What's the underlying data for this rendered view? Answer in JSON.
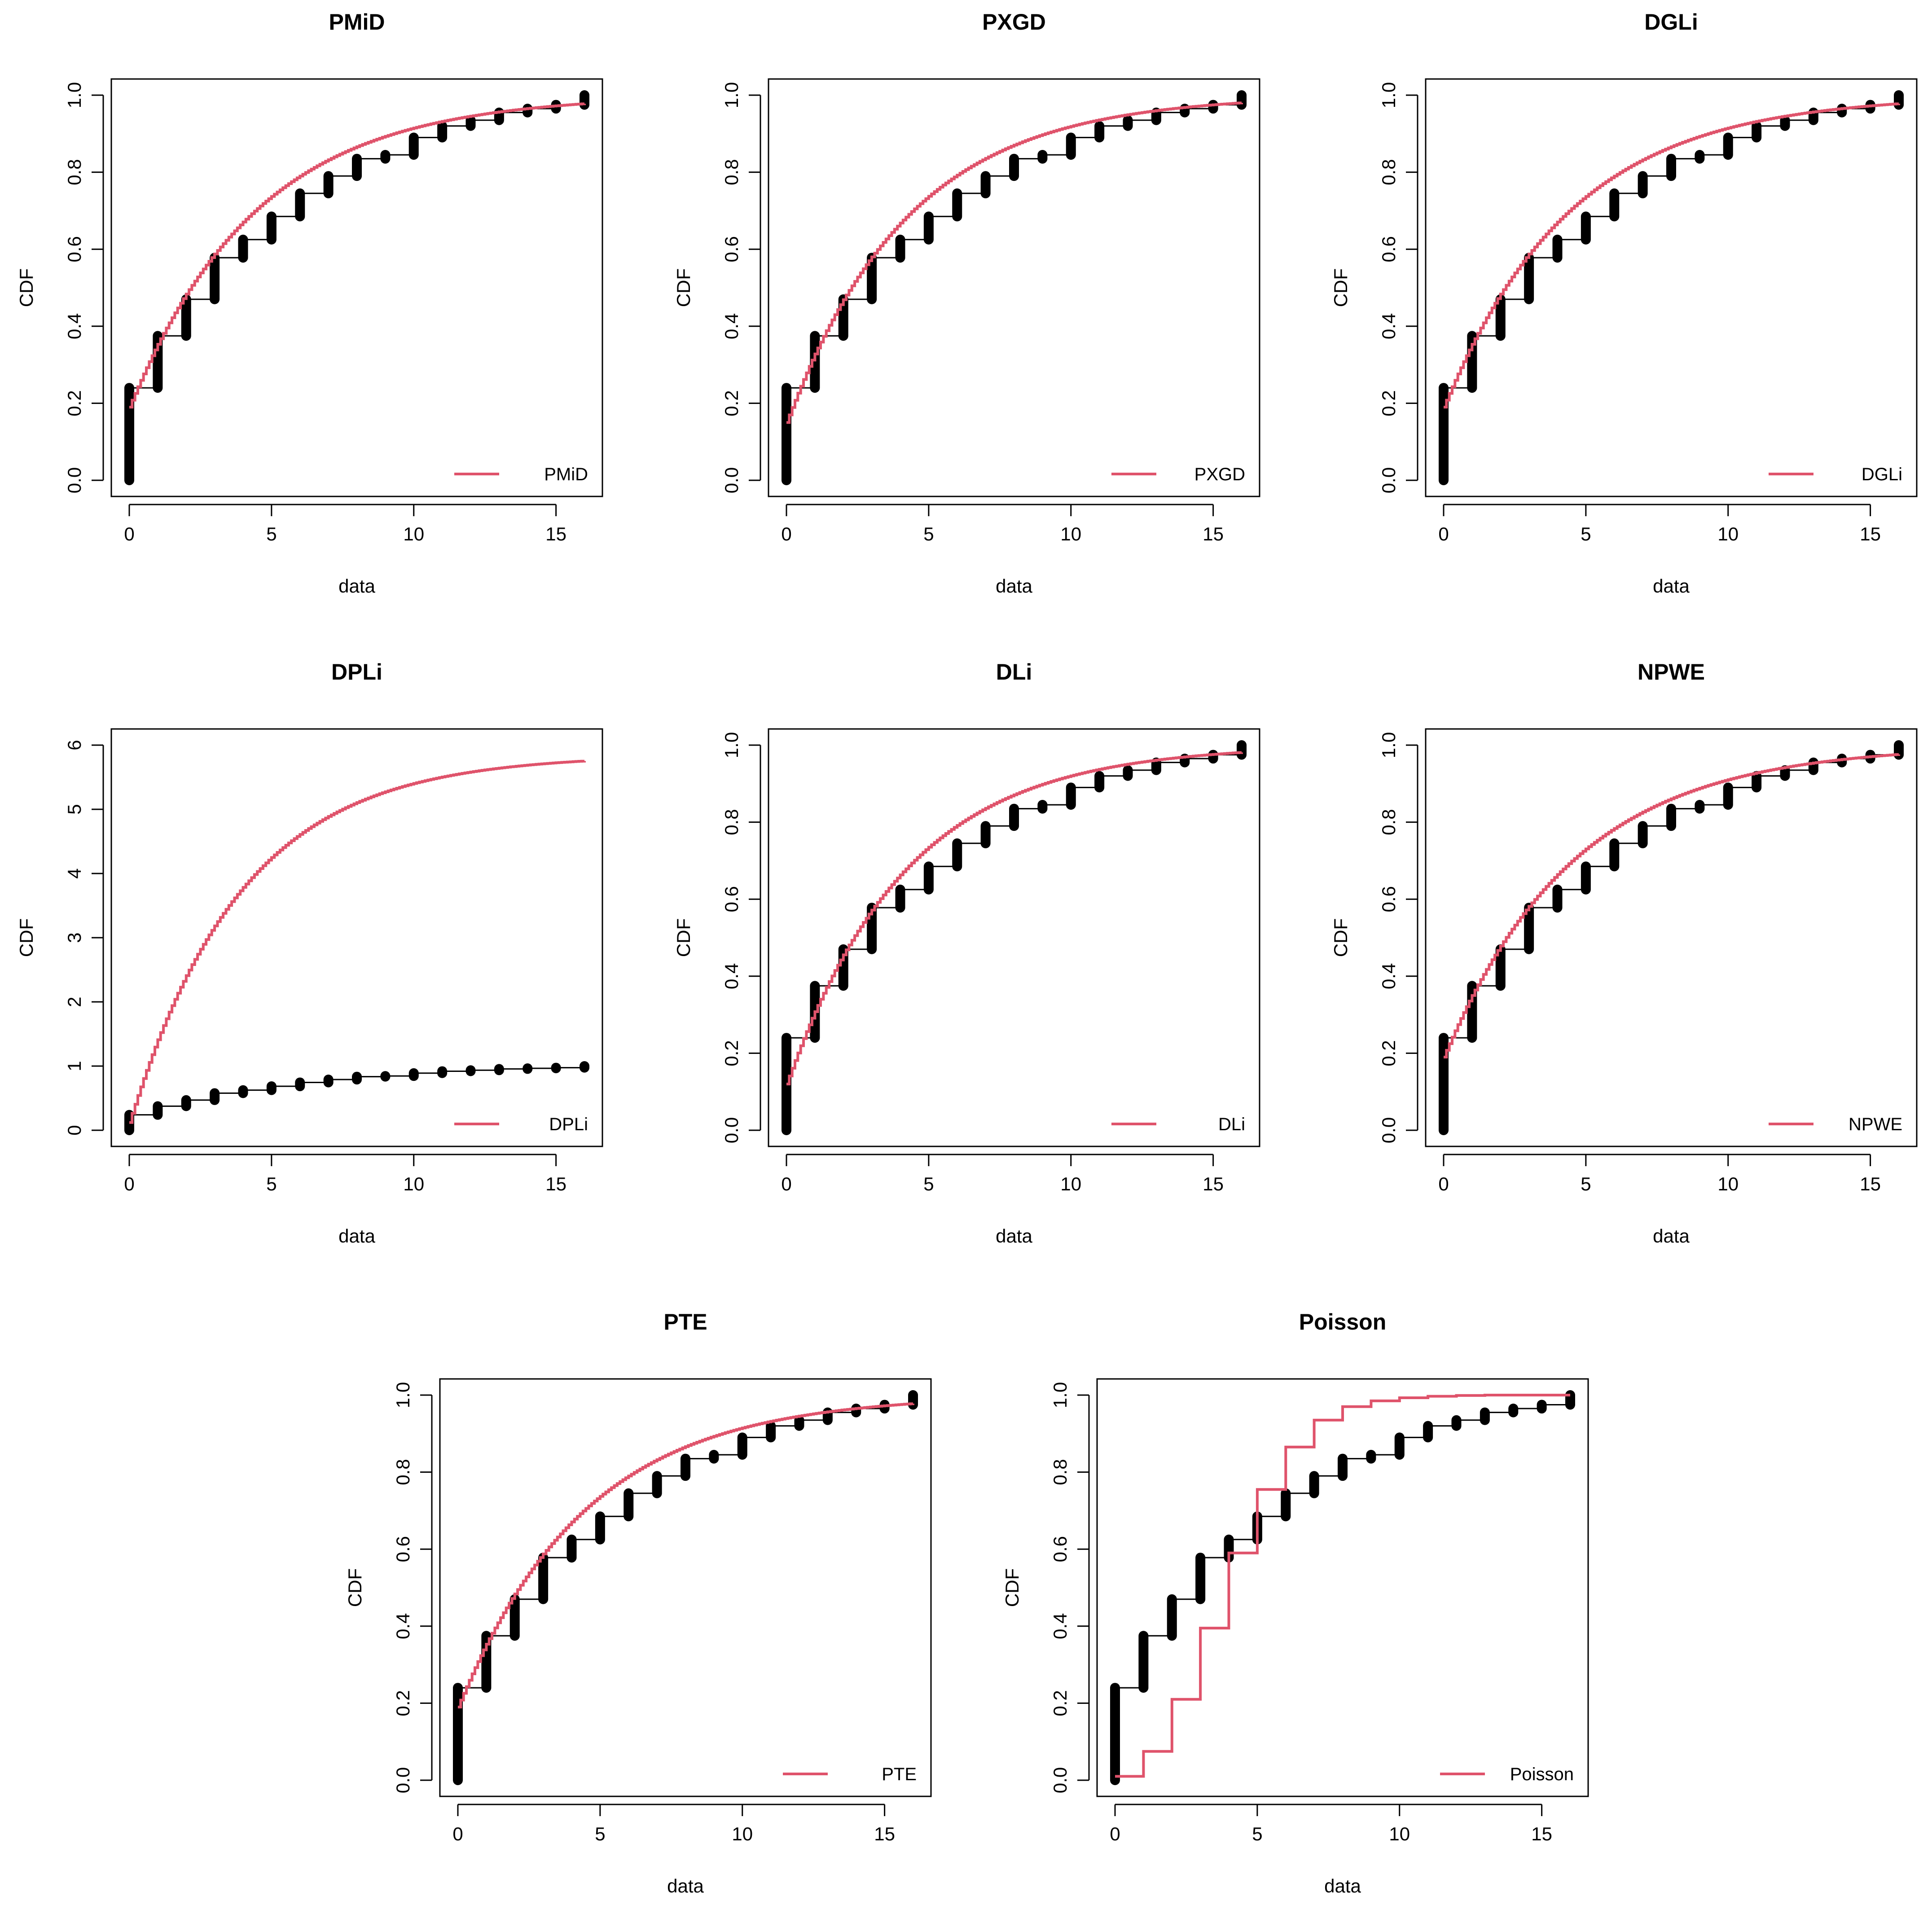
{
  "figure": {
    "background": "#ffffff"
  },
  "colors": {
    "ecdf": "#000000",
    "fitted": "#DF536B"
  },
  "shared": {
    "xlabel": "data",
    "ylabel": "CDF",
    "xticks": [
      0,
      5,
      10,
      15
    ],
    "xlim": [
      0,
      16
    ],
    "empirical_cdf": {
      "x": [
        0,
        1,
        2,
        3,
        4,
        5,
        6,
        7,
        8,
        9,
        10,
        11,
        12,
        13,
        14,
        15,
        16
      ],
      "y": [
        0.24,
        0.375,
        0.47,
        0.578,
        0.625,
        0.685,
        0.745,
        0.79,
        0.835,
        0.845,
        0.89,
        0.92,
        0.935,
        0.955,
        0.965,
        0.975,
        1.0
      ],
      "yprev": [
        0.0,
        0.24,
        0.375,
        0.47,
        0.578,
        0.625,
        0.685,
        0.745,
        0.79,
        0.835,
        0.845,
        0.89,
        0.92,
        0.935,
        0.955,
        0.965,
        0.975
      ]
    }
  },
  "chart_data": [
    {
      "type": "line",
      "title": "PMiD",
      "xlabel": "data",
      "ylabel": "CDF",
      "ylim": [
        0,
        1
      ],
      "yticks": [
        0.0,
        0.2,
        0.4,
        0.6,
        0.8,
        1.0
      ],
      "ytick_labels": [
        "0.0",
        "0.2",
        "0.4",
        "0.6",
        "0.8",
        "1.0"
      ],
      "legend": "PMiD",
      "legend_position": "bottom-right",
      "fitted": {
        "kind": "exp",
        "y0": 0.19,
        "rate": 0.225,
        "scale": 1.0
      }
    },
    {
      "type": "line",
      "title": "PXGD",
      "xlabel": "data",
      "ylabel": "CDF",
      "ylim": [
        0,
        1
      ],
      "yticks": [
        0.0,
        0.2,
        0.4,
        0.6,
        0.8,
        1.0
      ],
      "ytick_labels": [
        "0.0",
        "0.2",
        "0.4",
        "0.6",
        "0.8",
        "1.0"
      ],
      "legend": "PXGD",
      "legend_position": "bottom-right",
      "fitted": {
        "kind": "exp",
        "y0": 0.15,
        "rate": 0.235,
        "scale": 1.0
      }
    },
    {
      "type": "line",
      "title": "DGLi",
      "xlabel": "data",
      "ylabel": "CDF",
      "ylim": [
        0,
        1
      ],
      "yticks": [
        0.0,
        0.2,
        0.4,
        0.6,
        0.8,
        1.0
      ],
      "ytick_labels": [
        "0.0",
        "0.2",
        "0.4",
        "0.6",
        "0.8",
        "1.0"
      ],
      "legend": "DGLi",
      "legend_position": "bottom-right",
      "fitted": {
        "kind": "exp",
        "y0": 0.19,
        "rate": 0.225,
        "scale": 1.0
      }
    },
    {
      "type": "line",
      "title": "DPLi",
      "xlabel": "data",
      "ylabel": "CDF",
      "ylim": [
        0,
        6
      ],
      "yticks": [
        0,
        1,
        2,
        3,
        4,
        5,
        6
      ],
      "ytick_labels": [
        "0",
        "1",
        "2",
        "3",
        "4",
        "5",
        "6"
      ],
      "legend": "DPLi",
      "legend_position": "bottom-right",
      "fitted": {
        "kind": "exp",
        "y0": 0.12,
        "rate": 0.255,
        "scale": 5.85
      }
    },
    {
      "type": "line",
      "title": "DLi",
      "xlabel": "data",
      "ylabel": "CDF",
      "ylim": [
        0,
        1
      ],
      "yticks": [
        0.0,
        0.2,
        0.4,
        0.6,
        0.8,
        1.0
      ],
      "ytick_labels": [
        "0.0",
        "0.2",
        "0.4",
        "0.6",
        "0.8",
        "1.0"
      ],
      "legend": "DLi",
      "legend_position": "bottom-right",
      "fitted": {
        "kind": "exp",
        "y0": 0.12,
        "rate": 0.24,
        "scale": 1.0
      }
    },
    {
      "type": "line",
      "title": "NPWE",
      "xlabel": "data",
      "ylabel": "CDF",
      "ylim": [
        0,
        1
      ],
      "yticks": [
        0.0,
        0.2,
        0.4,
        0.6,
        0.8,
        1.0
      ],
      "ytick_labels": [
        "0.0",
        "0.2",
        "0.4",
        "0.6",
        "0.8",
        "1.0"
      ],
      "legend": "NPWE",
      "legend_position": "bottom-right",
      "fitted": {
        "kind": "exp",
        "y0": 0.19,
        "rate": 0.22,
        "scale": 1.0
      }
    },
    {
      "type": "line",
      "title": "PTE",
      "xlabel": "data",
      "ylabel": "CDF",
      "ylim": [
        0,
        1
      ],
      "yticks": [
        0.0,
        0.2,
        0.4,
        0.6,
        0.8,
        1.0
      ],
      "ytick_labels": [
        "0.0",
        "0.2",
        "0.4",
        "0.6",
        "0.8",
        "1.0"
      ],
      "legend": "PTE",
      "legend_position": "bottom-right",
      "fitted": {
        "kind": "exp",
        "y0": 0.19,
        "rate": 0.225,
        "scale": 1.0
      }
    },
    {
      "type": "line",
      "title": "Poisson",
      "xlabel": "data",
      "ylabel": "CDF",
      "ylim": [
        0,
        1
      ],
      "yticks": [
        0.0,
        0.2,
        0.4,
        0.6,
        0.8,
        1.0
      ],
      "ytick_labels": [
        "0.0",
        "0.2",
        "0.4",
        "0.6",
        "0.8",
        "1.0"
      ],
      "legend": "Poisson",
      "legend_position": "bottom-right",
      "fitted": {
        "kind": "step",
        "x": [
          0,
          1,
          2,
          3,
          4,
          5,
          6,
          7,
          8,
          9,
          10,
          11,
          12,
          13,
          14,
          15,
          16
        ],
        "y": [
          0.01,
          0.075,
          0.21,
          0.395,
          0.59,
          0.755,
          0.865,
          0.935,
          0.97,
          0.985,
          0.993,
          0.997,
          0.999,
          1.0,
          1.0,
          1.0,
          1.0
        ]
      }
    }
  ]
}
